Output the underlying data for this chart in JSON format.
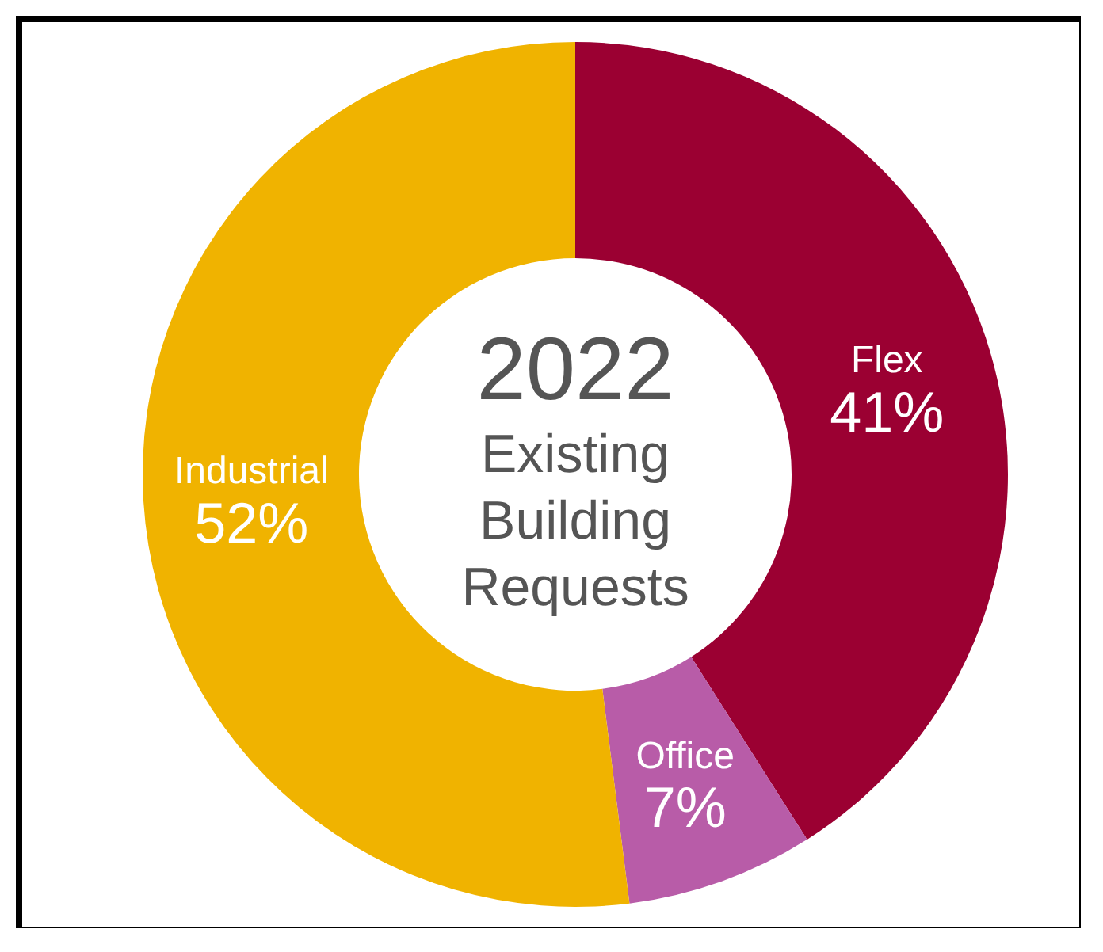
{
  "chart_data": {
    "type": "donut",
    "title": "2022",
    "subtitle": "Existing Building Requests",
    "categories": [
      "Flex",
      "Office",
      "Industrial"
    ],
    "values": [
      41,
      7,
      52
    ],
    "value_labels": [
      "41%",
      "7%",
      "52%"
    ],
    "colors": [
      "#9b0032",
      "#b85ca8",
      "#f0b300"
    ],
    "legend": false
  }
}
